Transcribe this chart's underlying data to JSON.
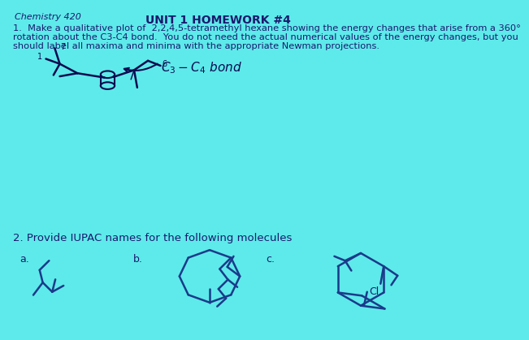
{
  "background_color": "#5EEAEA",
  "title_text": "UNIT 1 HOMEWORK #4",
  "header_text": "Chemistry 420",
  "q1_line1": "1.  Make a qualitative plot of  2,2,4,5-tetramethyl hexane showing the energy changes that arise from a 360°",
  "q1_line2": "rotation about the C3-C4 bond.  You do not need the actual numerical values of the energy changes, but you",
  "q1_line3": "should label all maxima and minima with the appropriate Newman projections.",
  "annotation_text": "C3-C4 bond",
  "q2_text": "2. Provide IUPAC names for the following molecules",
  "label_a": "a.",
  "label_b": "b.",
  "label_c": "c.",
  "text_color": "#1a1a6e",
  "ink_color": "#1a3a8a",
  "handwrite_color": "#0a0a50"
}
